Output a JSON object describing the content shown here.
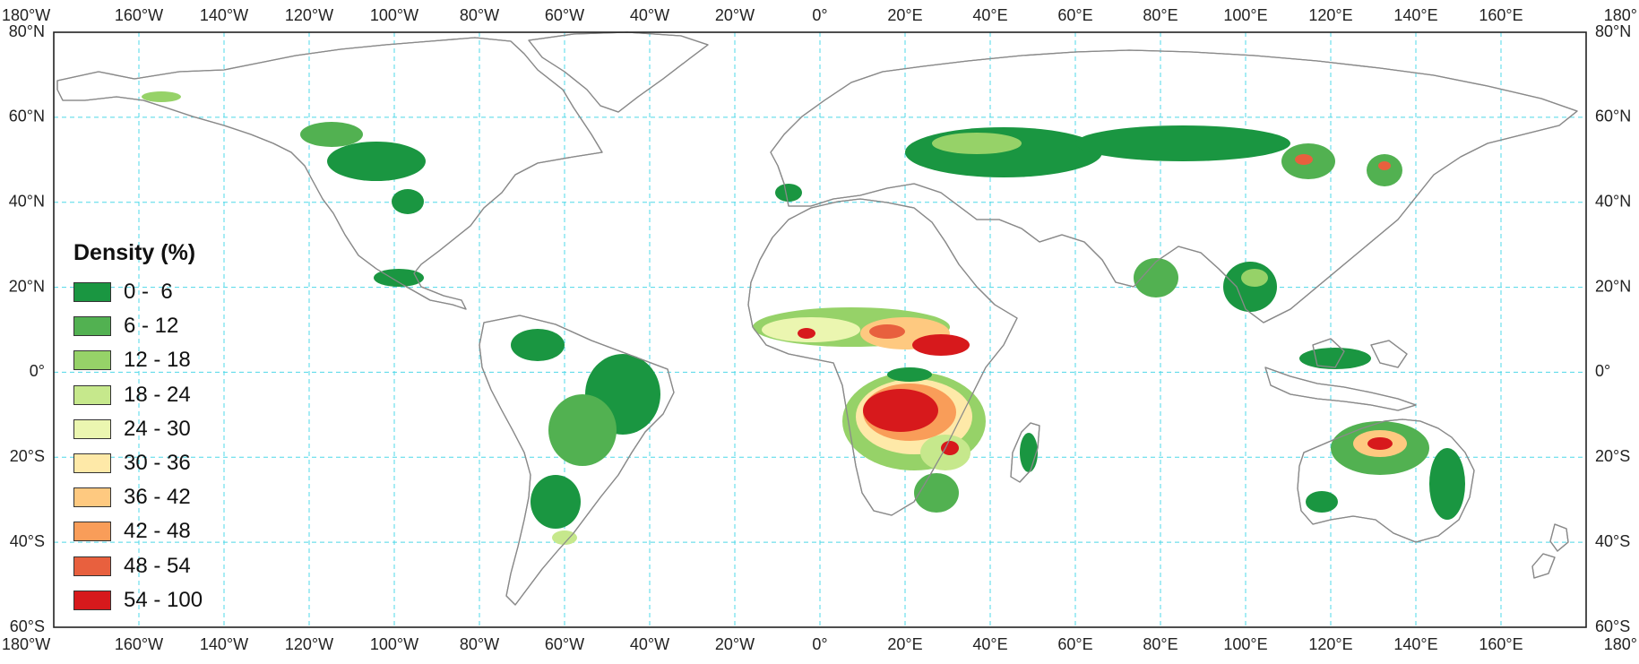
{
  "legend": {
    "title": "Density (%)",
    "classes": [
      {
        "label": "0 -  6",
        "color": "#1a9641"
      },
      {
        "label": "6 - 12",
        "color": "#52b151"
      },
      {
        "label": "12 - 18",
        "color": "#96d268"
      },
      {
        "label": "18 - 24",
        "color": "#c6e88c"
      },
      {
        "label": "24 - 30",
        "color": "#ebf6b0"
      },
      {
        "label": "30 - 36",
        "color": "#fee9a8"
      },
      {
        "label": "36 - 42",
        "color": "#fec980"
      },
      {
        "label": "42 - 48",
        "color": "#f99d59"
      },
      {
        "label": "48 - 54",
        "color": "#e8603e"
      },
      {
        "label": "54 - 100",
        "color": "#d7191c"
      }
    ]
  },
  "axes": {
    "longitude_labels": [
      "180°W",
      "160°W",
      "140°W",
      "120°W",
      "100°W",
      "80°W",
      "60°W",
      "40°W",
      "20°W",
      "0°",
      "20°E",
      "40°E",
      "60°E",
      "80°E",
      "100°E",
      "120°E",
      "140°E",
      "160°E",
      "180°"
    ],
    "latitude_labels": [
      "80°N",
      "60°N",
      "40°N",
      "20°N",
      "0°",
      "20°S",
      "40°S",
      "60°S"
    ],
    "lon_range": [
      -180,
      180
    ],
    "lat_range": [
      -60,
      80
    ],
    "grid": true,
    "grid_color": "#4fd8e8"
  }
}
